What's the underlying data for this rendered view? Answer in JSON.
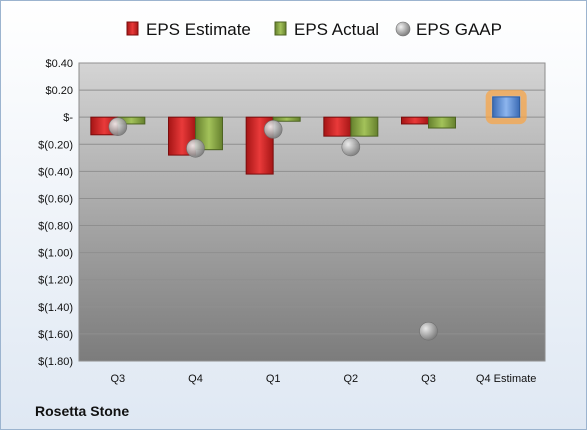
{
  "chart_data": {
    "type": "bar",
    "categories": [
      "Q3",
      "Q4",
      "Q1",
      "Q2",
      "Q3",
      "Q4 Estimate"
    ],
    "series": [
      {
        "name": "EPS Estimate",
        "values": [
          -0.13,
          -0.28,
          -0.42,
          -0.14,
          -0.05,
          null
        ]
      },
      {
        "name": "EPS Actual",
        "values": [
          -0.05,
          -0.24,
          -0.03,
          -0.14,
          -0.08,
          0.15
        ]
      },
      {
        "name": "EPS GAAP",
        "values": [
          -0.07,
          -0.23,
          -0.09,
          -0.22,
          -1.58,
          null
        ]
      }
    ],
    "yticks": [
      "$0.40",
      "$0.20",
      "$-",
      "$(0.20)",
      "$(0.40)",
      "$(0.60)",
      "$(0.80)",
      "$(1.00)",
      "$(1.20)",
      "$(1.40)",
      "$(1.60)",
      "$(1.80)"
    ],
    "ylim": [
      -1.8,
      0.4
    ],
    "legend_position": "top",
    "highlighted_category": "Q4 Estimate",
    "colors": {
      "estimate": "#d62728",
      "actual": "#8aaa45",
      "gaap": "#a9a9a9",
      "forecast": "#5b8fd6",
      "forecast_glow": "#f7a54a"
    }
  },
  "company": "Rosetta Stone"
}
